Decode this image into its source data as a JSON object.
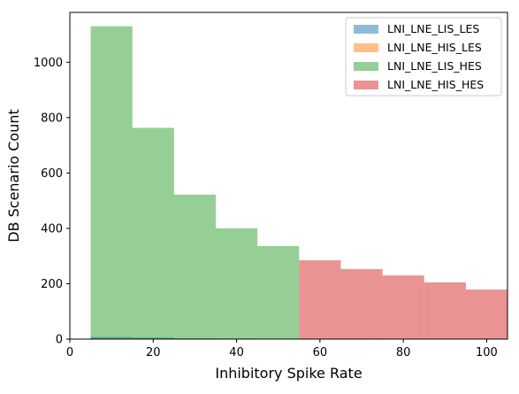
{
  "chart_data": {
    "type": "bar",
    "title": "",
    "xlabel": "Inhibitory Spike Rate",
    "ylabel": "DB Scenario Count",
    "xlim": [
      0,
      105
    ],
    "ylim": [
      0,
      1180
    ],
    "xticks": [
      0,
      20,
      40,
      60,
      80,
      100
    ],
    "yticks": [
      0,
      200,
      400,
      600,
      800,
      1000
    ],
    "grid": false,
    "legend_position": "top-right",
    "series": [
      {
        "name": "LNI_LNE_LIS_LES",
        "color": "#1f77b4",
        "bins": [
          [
            5,
            15,
            8
          ],
          [
            15,
            25,
            6
          ],
          [
            25,
            35,
            3
          ],
          [
            35,
            45,
            2
          ],
          [
            45,
            55,
            1
          ]
        ]
      },
      {
        "name": "LNI_LNE_HIS_LES",
        "color": "#ff7f0e",
        "bins": [
          [
            55,
            65,
            2
          ],
          [
            65,
            75,
            2
          ],
          [
            75,
            85,
            1
          ],
          [
            85,
            95,
            1
          ],
          [
            95,
            105,
            1
          ]
        ]
      },
      {
        "name": "LNI_LNE_LIS_HES",
        "color": "#2ca02c",
        "bins": [
          [
            5,
            15,
            1130
          ],
          [
            15,
            25,
            763
          ],
          [
            25,
            35,
            522
          ],
          [
            35,
            45,
            400
          ],
          [
            45,
            55,
            336
          ]
        ]
      },
      {
        "name": "LNI_LNE_HIS_HES",
        "color": "#d62728",
        "bins": [
          [
            55,
            65,
            285
          ],
          [
            65,
            75,
            253
          ],
          [
            75,
            85,
            230
          ],
          [
            85,
            95,
            205
          ],
          [
            95,
            105,
            179
          ]
        ]
      }
    ]
  }
}
